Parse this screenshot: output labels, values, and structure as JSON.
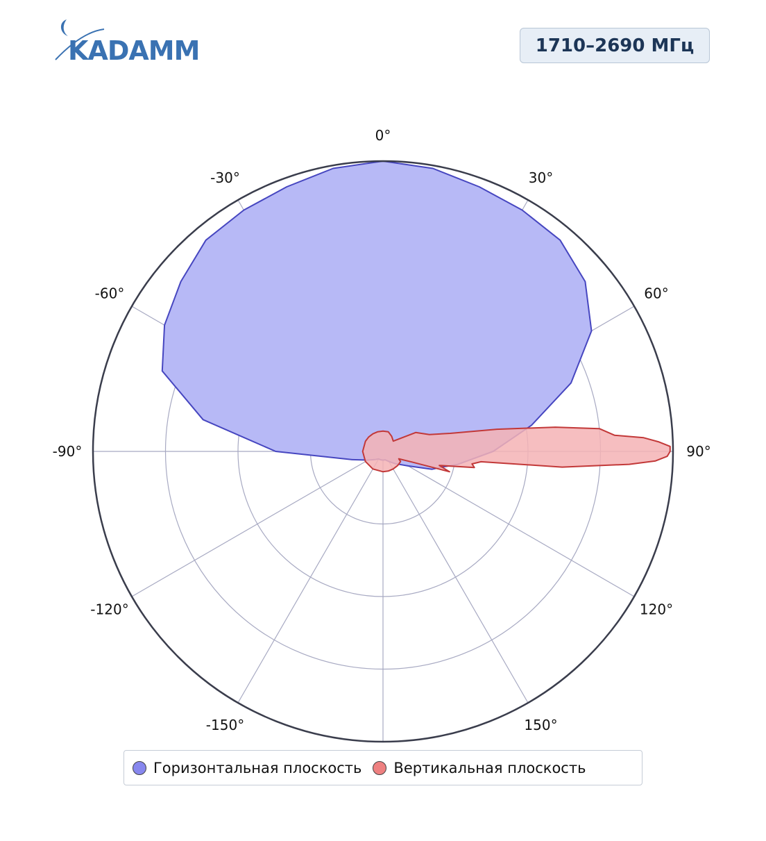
{
  "logo": {
    "text": "KADAMM"
  },
  "badge": {
    "label": "1710–2690 МГц"
  },
  "chart_data": {
    "type": "polar",
    "angle_unit": "deg",
    "angle_zero": "top",
    "angle_direction": "clockwise",
    "angle_ticks": [
      0,
      30,
      60,
      90,
      120,
      150,
      180,
      -150,
      -120,
      -90,
      -60,
      -30
    ],
    "angle_tick_labels": [
      "0°",
      "30°",
      "60°",
      "90°",
      "120°",
      "150°",
      "",
      "-150°",
      "-120°",
      "-90°",
      "-60°",
      "-30°"
    ],
    "radial_rings": [
      0.25,
      0.5,
      0.75,
      1.0
    ],
    "radial_range": [
      0,
      1
    ],
    "grid": true,
    "legend_position": "bottom",
    "colors": {
      "horizontal_fill": "#b7b9f6",
      "horizontal_line": "#4646c0",
      "horizontal_marker": "#8787ee",
      "vertical_fill": "#f5b3b5",
      "vertical_line": "#c23838",
      "vertical_marker": "#ee8080"
    },
    "series": [
      {
        "name": "Горизонтальная плоскость",
        "color": "#8787ee",
        "angles": [
          -180,
          -165,
          -150,
          -135,
          -120,
          -105,
          -90,
          -80,
          -70,
          -60,
          -50,
          -40,
          -30,
          -20,
          -10,
          0,
          10,
          20,
          30,
          40,
          50,
          60,
          70,
          80,
          90,
          100,
          105,
          110,
          120,
          135,
          150,
          165,
          180
        ],
        "values": [
          0.03,
          0.03,
          0.03,
          0.04,
          0.06,
          0.11,
          0.37,
          0.63,
          0.81,
          0.87,
          0.91,
          0.95,
          0.96,
          0.97,
          0.99,
          1.0,
          0.99,
          0.97,
          0.96,
          0.95,
          0.91,
          0.83,
          0.69,
          0.52,
          0.38,
          0.26,
          0.21,
          0.18,
          0.1,
          0.06,
          0.04,
          0.03,
          0.03
        ]
      },
      {
        "name": "Вертикальная плоскость",
        "color": "#ee8080",
        "angles": [
          -180,
          -150,
          -120,
          -90,
          -60,
          -45,
          -30,
          -15,
          0,
          15,
          30,
          45,
          60,
          70,
          75,
          79,
          82,
          84,
          86,
          87,
          88,
          89,
          90,
          91,
          92,
          93,
          95,
          96,
          98,
          100,
          104,
          107,
          110,
          115,
          120,
          130,
          135,
          150,
          165,
          180
        ],
        "values": [
          0.07,
          0.07,
          0.07,
          0.07,
          0.07,
          0.07,
          0.07,
          0.07,
          0.07,
          0.07,
          0.06,
          0.05,
          0.13,
          0.17,
          0.24,
          0.4,
          0.6,
          0.75,
          0.8,
          0.9,
          0.95,
          0.99,
          0.99,
          0.98,
          0.94,
          0.85,
          0.62,
          0.34,
          0.31,
          0.32,
          0.2,
          0.24,
          0.11,
          0.06,
          0.07,
          0.07,
          0.07,
          0.07,
          0.07,
          0.07
        ]
      }
    ]
  }
}
